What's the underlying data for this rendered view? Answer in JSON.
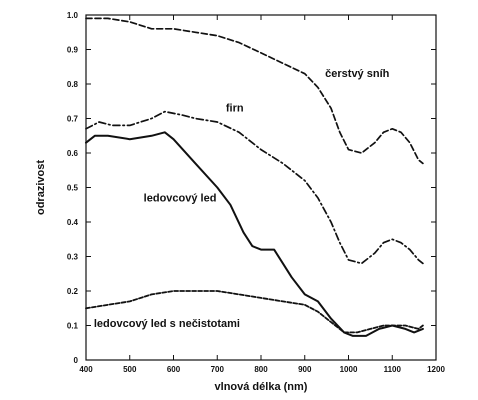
{
  "chart_data": {
    "type": "line",
    "title": "",
    "xlabel": "vlnová délka (nm)",
    "ylabel": "odrazivost",
    "xlim": [
      400,
      1200
    ],
    "ylim": [
      0,
      1.0
    ],
    "xticks": [
      400,
      500,
      600,
      700,
      800,
      900,
      1000,
      1100,
      1200
    ],
    "yticks": [
      0,
      0.1,
      0.2,
      0.3,
      0.4,
      0.5,
      0.6,
      0.7,
      0.8,
      0.9,
      1.0
    ],
    "xtick_labels": [
      "400",
      "500",
      "600",
      "700",
      "800",
      "900",
      "1000",
      "1100",
      "1200"
    ],
    "ytick_labels": [
      "0",
      "0.1",
      "0.2",
      "0.3",
      "0.4",
      "0.5",
      "0.6",
      "0.7",
      "0.8",
      "0.9",
      "1.0"
    ],
    "grid": false,
    "series": [
      {
        "name": "čerstvý sníh",
        "style": "dashed",
        "x": [
          400,
          450,
          500,
          550,
          600,
          650,
          700,
          750,
          800,
          850,
          900,
          930,
          960,
          980,
          1000,
          1030,
          1060,
          1080,
          1100,
          1120,
          1140,
          1160,
          1170
        ],
        "y": [
          0.99,
          0.99,
          0.98,
          0.96,
          0.96,
          0.95,
          0.94,
          0.92,
          0.89,
          0.86,
          0.83,
          0.79,
          0.73,
          0.66,
          0.61,
          0.6,
          0.63,
          0.66,
          0.67,
          0.66,
          0.63,
          0.58,
          0.57
        ]
      },
      {
        "name": "firn",
        "style": "dash-dot",
        "x": [
          400,
          430,
          460,
          500,
          550,
          580,
          620,
          650,
          700,
          750,
          800,
          850,
          900,
          930,
          960,
          980,
          1000,
          1030,
          1060,
          1080,
          1100,
          1120,
          1140,
          1160,
          1170
        ],
        "y": [
          0.67,
          0.69,
          0.68,
          0.68,
          0.7,
          0.72,
          0.71,
          0.7,
          0.69,
          0.66,
          0.61,
          0.57,
          0.52,
          0.47,
          0.4,
          0.34,
          0.29,
          0.28,
          0.31,
          0.34,
          0.35,
          0.34,
          0.32,
          0.29,
          0.28
        ]
      },
      {
        "name": "ledovcový led",
        "style": "solid",
        "x": [
          400,
          420,
          450,
          500,
          550,
          580,
          600,
          650,
          700,
          730,
          760,
          780,
          800,
          830,
          850,
          870,
          900,
          930,
          960,
          990,
          1010,
          1040,
          1070,
          1100,
          1130,
          1150,
          1170
        ],
        "y": [
          0.63,
          0.65,
          0.65,
          0.64,
          0.65,
          0.66,
          0.64,
          0.57,
          0.5,
          0.45,
          0.37,
          0.33,
          0.32,
          0.32,
          0.28,
          0.24,
          0.19,
          0.17,
          0.12,
          0.08,
          0.07,
          0.07,
          0.09,
          0.1,
          0.09,
          0.08,
          0.09
        ]
      },
      {
        "name": "ledovcový led s nečistotami",
        "style": "dashed-short",
        "x": [
          400,
          450,
          500,
          550,
          600,
          650,
          700,
          750,
          800,
          850,
          900,
          930,
          960,
          990,
          1020,
          1050,
          1080,
          1100,
          1130,
          1160,
          1170
        ],
        "y": [
          0.15,
          0.16,
          0.17,
          0.19,
          0.2,
          0.2,
          0.2,
          0.19,
          0.18,
          0.17,
          0.16,
          0.14,
          0.11,
          0.08,
          0.08,
          0.09,
          0.1,
          0.1,
          0.1,
          0.09,
          0.1
        ]
      }
    ],
    "labels": [
      {
        "text": "čerstvý sníh",
        "x": 1020,
        "y": 0.82
      },
      {
        "text": "firn",
        "x": 740,
        "y": 0.72
      },
      {
        "text": "ledovcový led",
        "x": 615,
        "y": 0.46
      },
      {
        "text": "ledovcový led s nečistotami",
        "x": 585,
        "y": 0.095
      }
    ]
  }
}
